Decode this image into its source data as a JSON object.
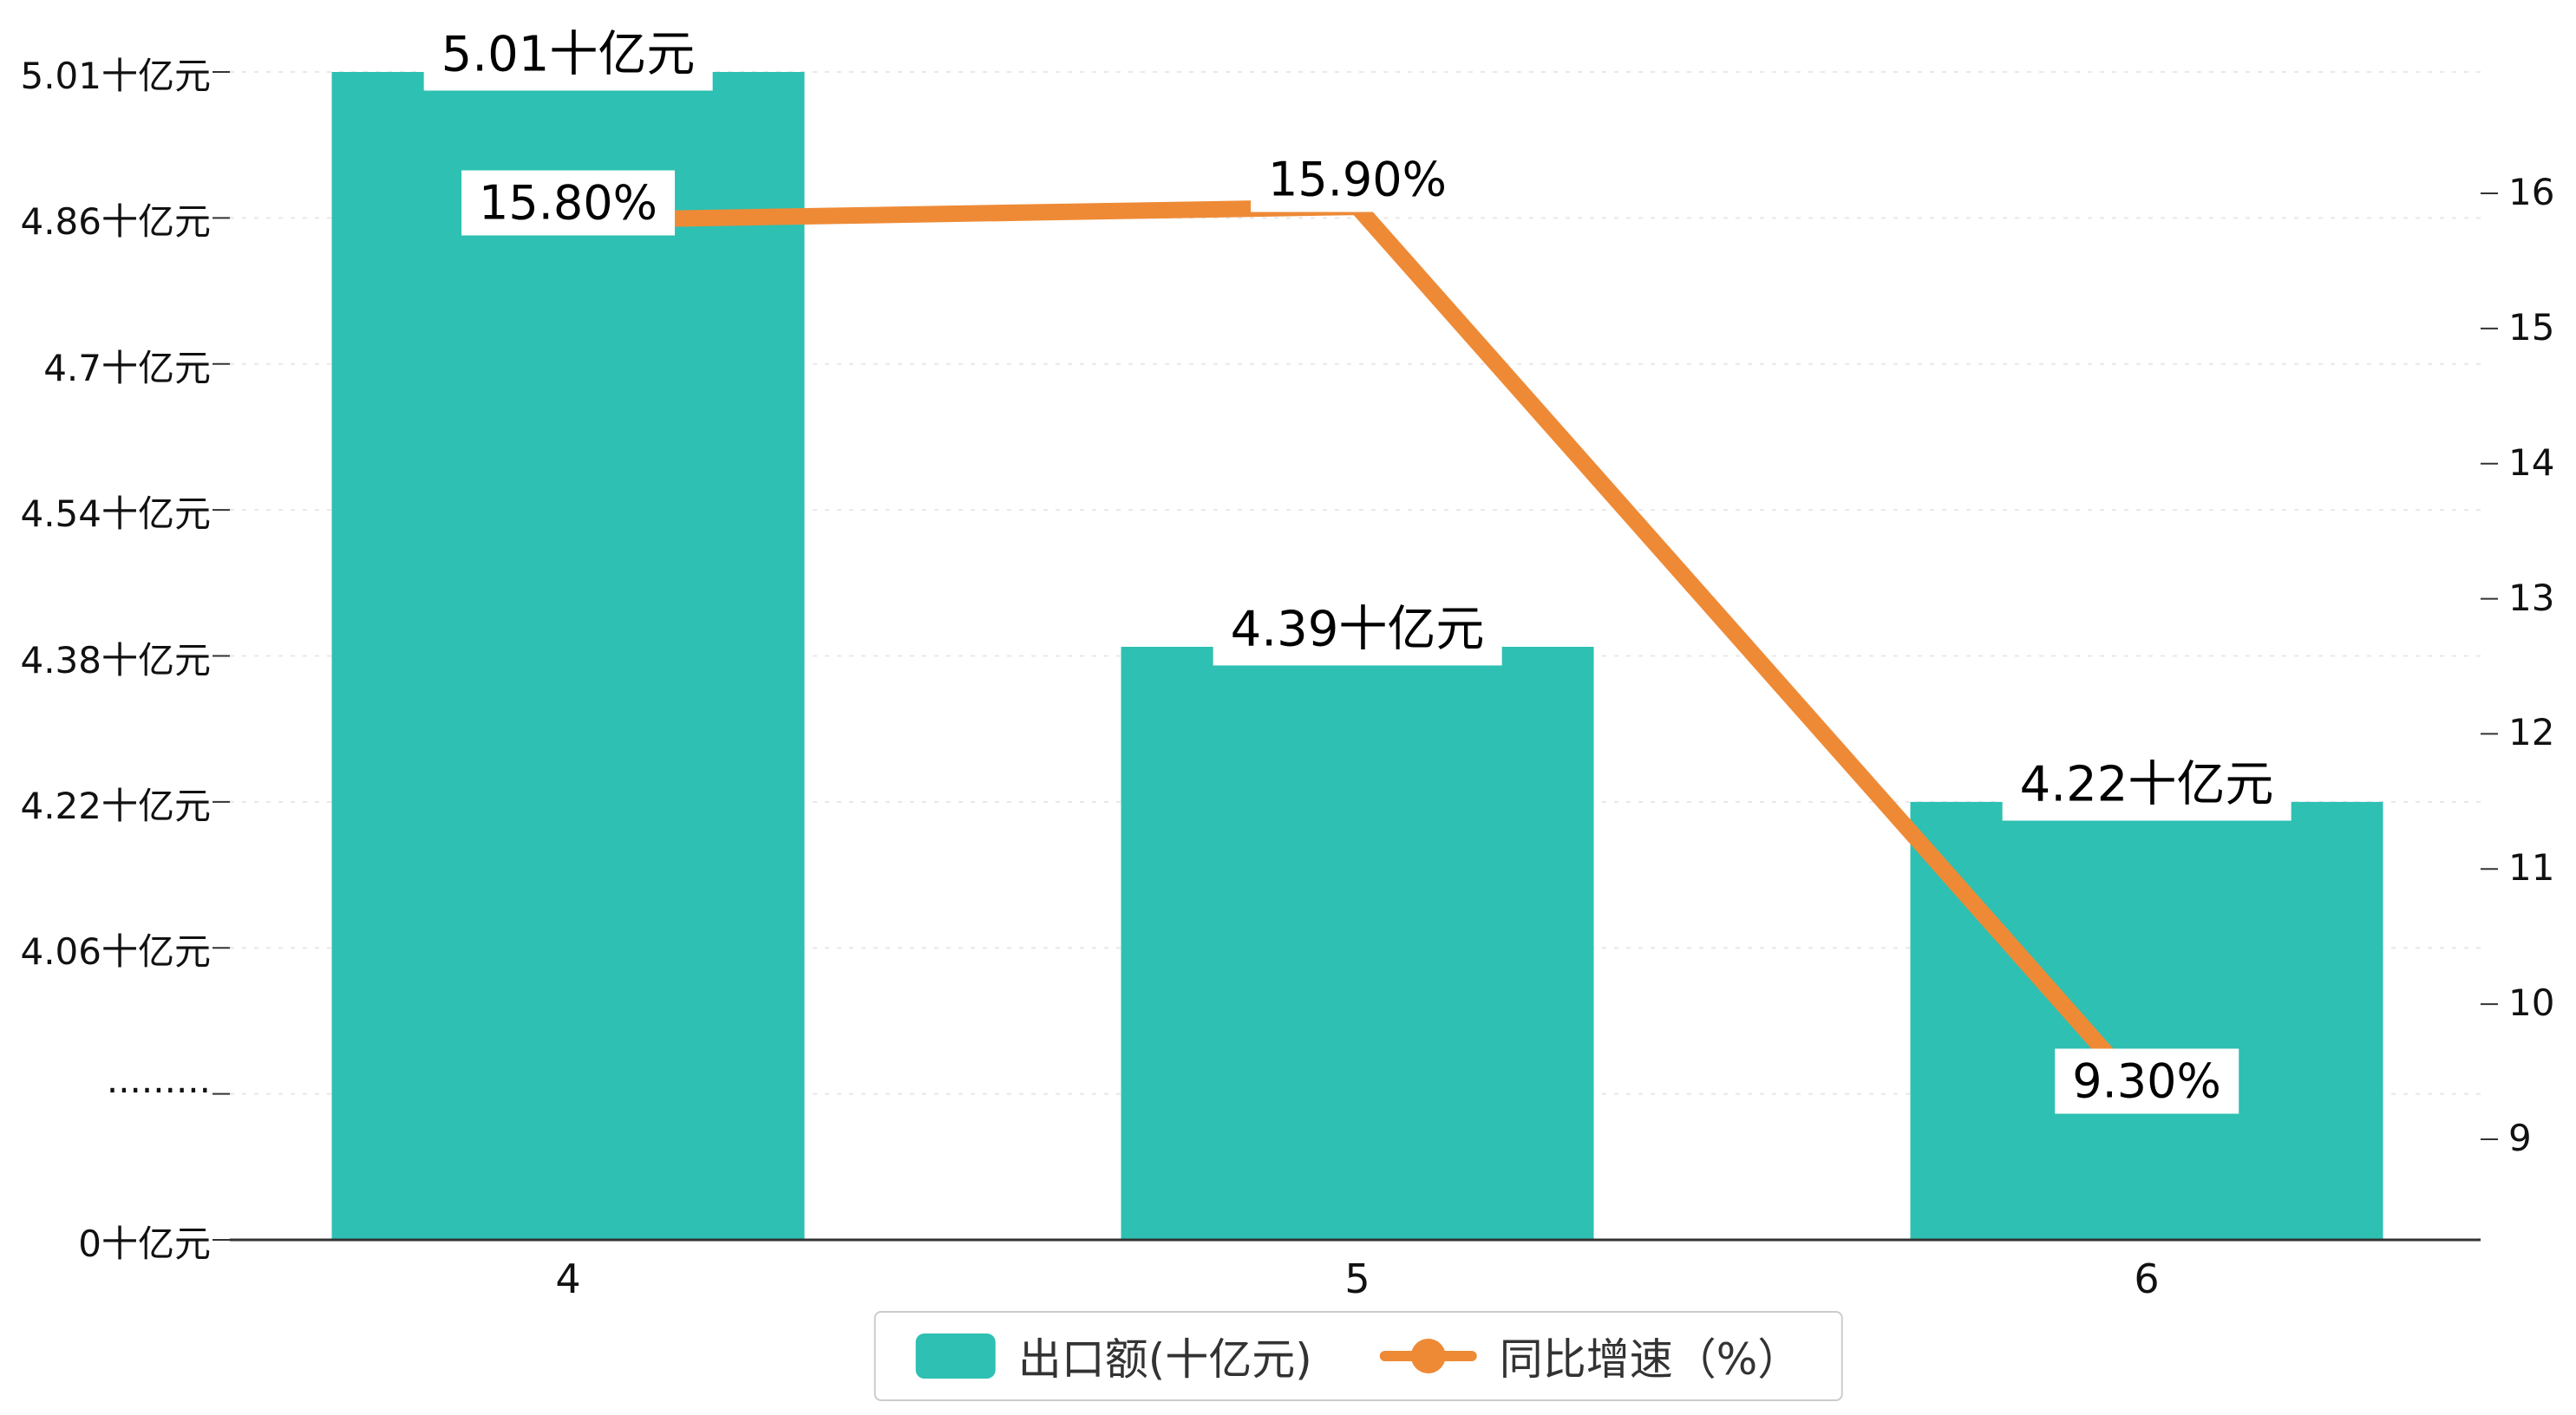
{
  "colors": {
    "bar": "#2EC0B2",
    "line": "#EE8A36",
    "grid": "#e8e8e8",
    "axis": "#333333",
    "label_bg": "#ffffff",
    "text": "#111111"
  },
  "chart_data": {
    "type": "combo-bar-line",
    "categories": [
      "4",
      "5",
      "6"
    ],
    "series": [
      {
        "name": "出口额(十亿元)",
        "type": "bar",
        "axis": "left",
        "color": "#2EC0B2",
        "values": [
          5.01,
          4.39,
          4.22
        ],
        "labels": [
          "5.01十亿元",
          "4.39十亿元",
          "4.22十亿元"
        ]
      },
      {
        "name": "同比增速（%）",
        "type": "line",
        "axis": "right",
        "color": "#EE8A36",
        "values": [
          15.8,
          15.9,
          9.3
        ],
        "labels": [
          "15.80%",
          "15.90%",
          "9.30%"
        ]
      }
    ],
    "left_axis": {
      "tick_labels": [
        "0十亿元",
        "·········",
        "4.06十亿元",
        "4.22十亿元",
        "4.38十亿元",
        "4.54十亿元",
        "4.7十亿元",
        "4.86十亿元",
        "5.01十亿元"
      ],
      "tick_values": [
        0,
        null,
        4.06,
        4.22,
        4.38,
        4.54,
        4.7,
        4.86,
        5.01
      ],
      "broken_axis": true
    },
    "right_axis": {
      "tick_labels": [
        "9",
        "10",
        "11",
        "12",
        "13",
        "14",
        "15",
        "16"
      ],
      "min": 9,
      "max": 16
    },
    "grid": "dashed-horizontal",
    "legend_position": "bottom-center",
    "legend": [
      {
        "label": "出口额(十亿元)",
        "marker": "rect",
        "color": "#2EC0B2"
      },
      {
        "label": "同比增速（%）",
        "marker": "line-dot",
        "color": "#EE8A36"
      }
    ]
  }
}
